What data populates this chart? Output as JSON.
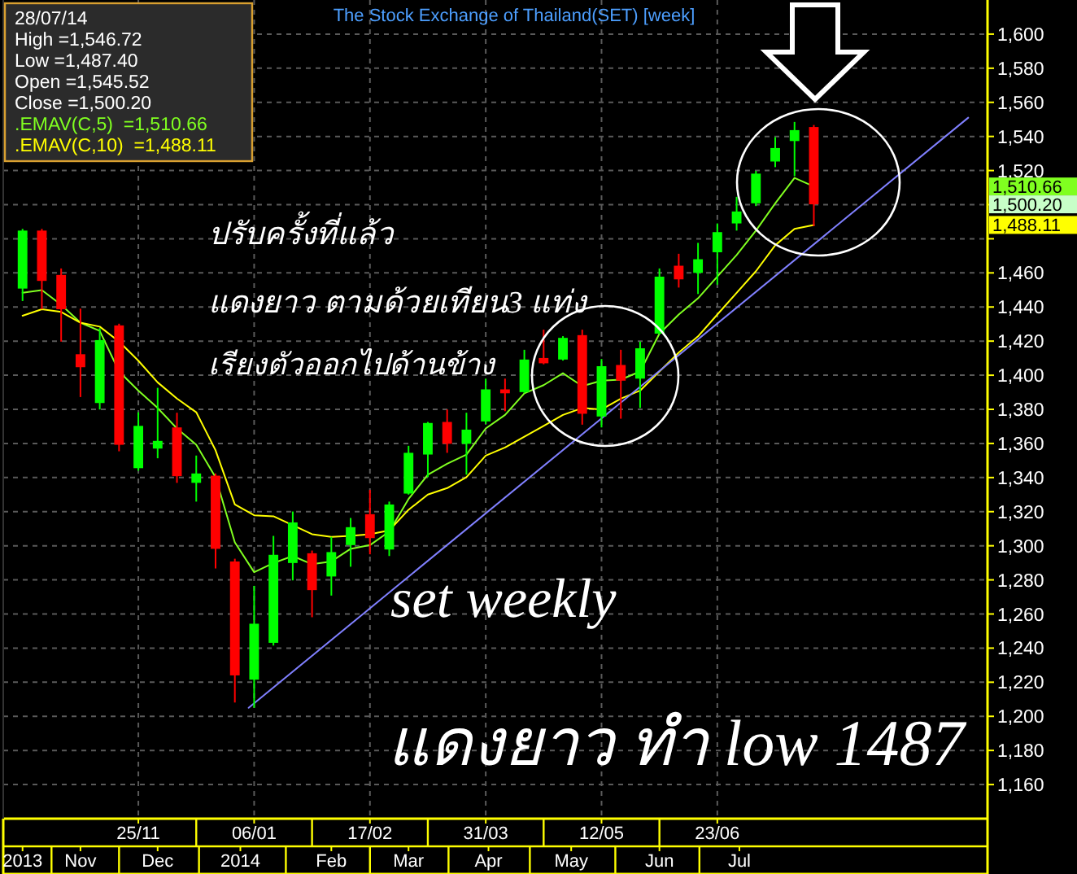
{
  "chart_data": {
    "type": "candlestick",
    "title": "The Stock Exchange of Thailand(SET) [week]",
    "x": [
      "2013-10-14",
      "2013-10-21",
      "2013-10-28",
      "2013-11-04",
      "2013-11-11",
      "2013-11-18",
      "2013-11-25",
      "2013-12-02",
      "2013-12-09",
      "2013-12-16",
      "2013-12-23",
      "2013-12-30",
      "2014-01-06",
      "2014-01-13",
      "2014-01-20",
      "2014-01-27",
      "2014-02-03",
      "2014-02-10",
      "2014-02-17",
      "2014-02-24",
      "2014-03-03",
      "2014-03-10",
      "2014-03-17",
      "2014-03-24",
      "2014-03-31",
      "2014-04-07",
      "2014-04-14",
      "2014-04-21",
      "2014-04-28",
      "2014-05-05",
      "2014-05-12",
      "2014-05-19",
      "2014-05-26",
      "2014-06-02",
      "2014-06-09",
      "2014-06-16",
      "2014-06-23",
      "2014-06-30",
      "2014-07-07",
      "2014-07-14",
      "2014-07-21",
      "2014-07-28"
    ],
    "ohlc": [
      [
        1450.8,
        1485.8,
        1443.5,
        1484.8
      ],
      [
        1484.8,
        1485.8,
        1438.7,
        1455.3
      ],
      [
        1458.8,
        1462.6,
        1419.7,
        1438.7
      ],
      [
        1412.3,
        1439,
        1387.2,
        1404.7
      ],
      [
        1383.7,
        1427.6,
        1379.9,
        1420.6
      ],
      [
        1429.2,
        1430.2,
        1355.4,
        1359.2
      ],
      [
        1345.5,
        1378.3,
        1344,
        1370.3
      ],
      [
        1357,
        1392.6,
        1351.3,
        1361.5
      ],
      [
        1369.4,
        1378,
        1336.9,
        1340.8
      ],
      [
        1336.9,
        1352.9,
        1325.9,
        1342.4
      ],
      [
        1341.1,
        1342.4,
        1286.7,
        1298.2
      ],
      [
        1290.8,
        1292.4,
        1208.1,
        1224
      ],
      [
        1221.5,
        1276.5,
        1205,
        1254.3
      ],
      [
        1243.1,
        1305.8,
        1241.5,
        1294.7
      ],
      [
        1289.9,
        1320.1,
        1279.7,
        1313.7
      ],
      [
        1295.6,
        1297.2,
        1258.1,
        1274
      ],
      [
        1282,
        1305.2,
        1270.8,
        1296.3
      ],
      [
        1300.4,
        1316.3,
        1287.7,
        1310.9
      ],
      [
        1318.5,
        1332.8,
        1295,
        1304.5
      ],
      [
        1297.8,
        1325.9,
        1294,
        1324.2
      ],
      [
        1330.6,
        1358.6,
        1330,
        1354.5
      ],
      [
        1353.5,
        1372.6,
        1340.2,
        1372
      ],
      [
        1372.6,
        1379.9,
        1354.5,
        1359.8
      ],
      [
        1359.8,
        1378,
        1341.7,
        1368.1
      ],
      [
        1372.9,
        1398,
        1371.4,
        1391.7
      ],
      [
        1391.7,
        1398,
        1378.9,
        1389.4
      ],
      [
        1390.1,
        1414.9,
        1389.4,
        1409.2
      ],
      [
        1410.1,
        1426.7,
        1406.4,
        1407
      ],
      [
        1409.2,
        1422.9,
        1408.6,
        1421.9
      ],
      [
        1423.5,
        1426.7,
        1371,
        1377.4
      ],
      [
        1375.8,
        1409.5,
        1369.4,
        1405.3
      ],
      [
        1406,
        1414.9,
        1374.5,
        1396.8
      ],
      [
        1398,
        1419.7,
        1380.8,
        1415.8
      ],
      [
        1424.4,
        1462.6,
        1424,
        1457.8
      ],
      [
        1464.2,
        1471.2,
        1451.4,
        1456.2
      ],
      [
        1460,
        1477.6,
        1447.6,
        1468
      ],
      [
        1472.1,
        1489,
        1453.1,
        1483.9
      ],
      [
        1489,
        1504.6,
        1484.8,
        1496
      ],
      [
        1500.8,
        1519.8,
        1499.2,
        1518.2
      ],
      [
        1525.3,
        1539.6,
        1522,
        1533.2
      ],
      [
        1537.3,
        1548.5,
        1516.7,
        1543.7
      ],
      [
        1545.52,
        1546.72,
        1487.4,
        1500.2
      ]
    ],
    "colors": [
      "#00ff00",
      "#ff0000",
      "#ff0000",
      "#ff0000",
      "#00ff00",
      "#ff0000",
      "#00ff00",
      "#00ff00",
      "#ff0000",
      "#00ff00",
      "#ff0000",
      "#ff0000",
      "#00ff00",
      "#00ff00",
      "#00ff00",
      "#ff0000",
      "#00ff00",
      "#00ff00",
      "#ff0000",
      "#00ff00",
      "#00ff00",
      "#00ff00",
      "#ff0000",
      "#00ff00",
      "#00ff00",
      "#ff0000",
      "#00ff00",
      "#ff0000",
      "#00ff00",
      "#ff0000",
      "#00ff00",
      "#ff0000",
      "#00ff00",
      "#00ff00",
      "#ff0000",
      "#00ff00",
      "#00ff00",
      "#00ff00",
      "#00ff00",
      "#00ff00",
      "#00ff00",
      "#ff0000"
    ],
    "series": [
      {
        "type": "line",
        "color": "#80ff20",
        "values": [
          1448.3,
          1449.9,
          1441.3,
          1430.8,
          1426,
          1402.2,
          1391,
          1380.8,
          1368.8,
          1359.2,
          1340.2,
          1302,
          1284.5,
          1289.9,
          1294,
          1289.2,
          1290.8,
          1298.2,
          1300.4,
          1308.3,
          1327.4,
          1341.7,
          1348.1,
          1353.5,
          1368.8,
          1376.7,
          1389.4,
          1394.2,
          1401.2,
          1393.6,
          1396.8,
          1397.4,
          1402.2,
          1424.4,
          1435.6,
          1445.1,
          1457.8,
          1470.5,
          1484.8,
          1500.8,
          1515.7,
          1510.66
        ]
      },
      {
        "type": "line",
        "color": "#ffff00",
        "values": [
          1434.9,
          1438.7,
          1437.1,
          1430.8,
          1428.5,
          1419.7,
          1408.5,
          1395.8,
          1386.3,
          1378.3,
          1356,
          1324.2,
          1317.9,
          1317.3,
          1312.1,
          1306.8,
          1305.2,
          1305.8,
          1306.8,
          1309,
          1321.1,
          1330,
          1333.8,
          1340.2,
          1352.9,
          1357.6,
          1364,
          1370.3,
          1376.7,
          1380.8,
          1379.9,
          1386.3,
          1391,
          1402.2,
          1413.3,
          1422.8,
          1435.6,
          1448.3,
          1461,
          1476.2,
          1485.8,
          1488.11
        ]
      },
      {
        "type": "line",
        "color": "#8080ff",
        "x": [
          "2014-01-04",
          "2014-09-22"
        ],
        "values": [
          1205,
          1551
        ]
      }
    ],
    "xlim": [
      "2013-10-07",
      "2014-09-29"
    ],
    "xticks": [
      {
        "value": "2013-11-25",
        "label": "25/11"
      },
      {
        "value": "2014-01-06",
        "label": "06/01"
      },
      {
        "value": "2014-02-17",
        "label": "17/02"
      },
      {
        "value": "2014-03-31",
        "label": "31/03"
      },
      {
        "value": "2014-05-12",
        "label": "12/05"
      },
      {
        "value": "2014-06-23",
        "label": "23/06"
      }
    ],
    "x2lim": [
      "2013-10-07",
      "2014-09-29"
    ],
    "x2ticks": [
      {
        "value": "2013-10-14",
        "label": "2013"
      },
      {
        "value": "2013-11-04",
        "label": "Nov"
      },
      {
        "value": "2013-12-02",
        "label": "Dec"
      },
      {
        "value": "2014-01-01",
        "label": "2014"
      },
      {
        "value": "2014-02-03",
        "label": "Feb"
      },
      {
        "value": "2014-03-03",
        "label": "Mar"
      },
      {
        "value": "2014-04-01",
        "label": "Apr"
      },
      {
        "value": "2014-05-01",
        "label": "May"
      },
      {
        "value": "2014-06-02",
        "label": "Jun"
      },
      {
        "value": "2014-07-01",
        "label": "Jul"
      }
    ],
    "ylim": [
      1140,
      1620
    ],
    "yticks": [
      {
        "value": 1160,
        "label": "1,160"
      },
      {
        "value": 1180,
        "label": "1,180"
      },
      {
        "value": 1200,
        "label": "1,200"
      },
      {
        "value": 1220,
        "label": "1,220"
      },
      {
        "value": 1240,
        "label": "1,240"
      },
      {
        "value": 1260,
        "label": "1,260"
      },
      {
        "value": 1280,
        "label": "1,280"
      },
      {
        "value": 1300,
        "label": "1,300"
      },
      {
        "value": 1320,
        "label": "1,320"
      },
      {
        "value": 1340,
        "label": "1,340"
      },
      {
        "value": 1360,
        "label": "1,360"
      },
      {
        "value": 1380,
        "label": "1,380"
      },
      {
        "value": 1400,
        "label": "1,400"
      },
      {
        "value": 1420,
        "label": "1,420"
      },
      {
        "value": 1440,
        "label": "1,440"
      },
      {
        "value": 1460,
        "label": "1,460"
      },
      {
        "value": 1480,
        "label": null
      },
      {
        "value": 1500,
        "label": null
      },
      {
        "value": 1520,
        "label": "1,520"
      },
      {
        "value": 1540,
        "label": "1,540"
      },
      {
        "value": 1560,
        "label": "1,560"
      },
      {
        "value": 1580,
        "label": "1,580"
      },
      {
        "value": 1600,
        "label": "1,600"
      }
    ],
    "grid": true,
    "annotations": [
      "28/07/14",
      "High =1,546.72",
      "Low =1,487.40",
      "Open =1,545.52",
      "Close =1,500.20",
      ".EMAV(C,5)  =1,510.66",
      ".EMAV(C,10)  =1,488.11",
      "1,510.66",
      "1,500.20",
      "1,488.11",
      "ปรับครั้งที่แล้ว",
      "แดงยาว ตามด้วยเทียน3 แท่ง",
      "เรียงตัวออกไปด้านข้าง",
      "set weekly",
      "แดงยาว ทำ low 1487"
    ]
  }
}
